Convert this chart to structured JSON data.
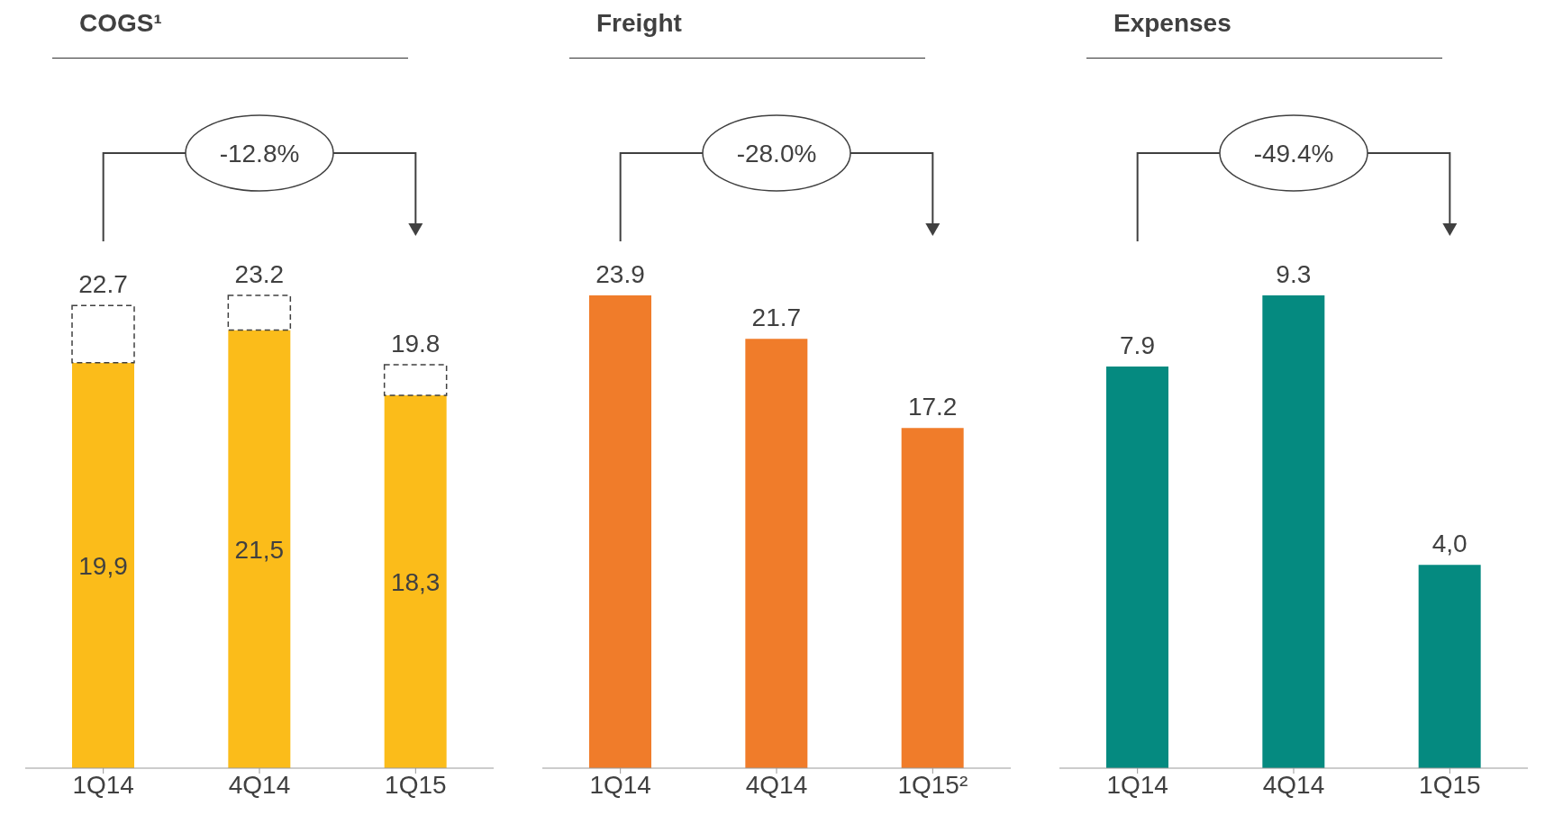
{
  "chart_data": [
    {
      "type": "bar",
      "title": "COGS¹",
      "categories": [
        "1Q14",
        "4Q14",
        "1Q15"
      ],
      "stacked": true,
      "tick_labels": "x",
      "annotations": [
        "-12.8%"
      ],
      "totals": [
        "22.7",
        "23.2",
        "19.8"
      ],
      "series": [
        {
          "color": "#fbbc1a",
          "values": [
            19.9,
            21.5,
            18.3
          ],
          "value_labels": [
            "19,9",
            "21,5",
            "18,3"
          ]
        },
        {
          "color": "#ffffff",
          "line_style": "dashed",
          "values": [
            2.8,
            1.7,
            1.5
          ]
        }
      ]
    },
    {
      "type": "bar",
      "title": "Freight",
      "categories": [
        "1Q14",
        "4Q14",
        "1Q15²"
      ],
      "tick_labels": "x",
      "annotations": [
        "-28.0%"
      ],
      "data_labels": true,
      "series": [
        {
          "color": "#f07c2a",
          "values": [
            23.9,
            21.7,
            17.2
          ]
        }
      ]
    },
    {
      "type": "bar",
      "title": "Expenses",
      "categories": [
        "1Q14",
        "4Q14",
        "1Q15"
      ],
      "tick_labels": "x",
      "annotations": [
        "-49.4%"
      ],
      "series": [
        {
          "color": "#058a80",
          "values": [
            7.9,
            9.3,
            4.0
          ],
          "value_labels": [
            "7.9",
            "9.3",
            "4,0"
          ]
        }
      ]
    }
  ]
}
